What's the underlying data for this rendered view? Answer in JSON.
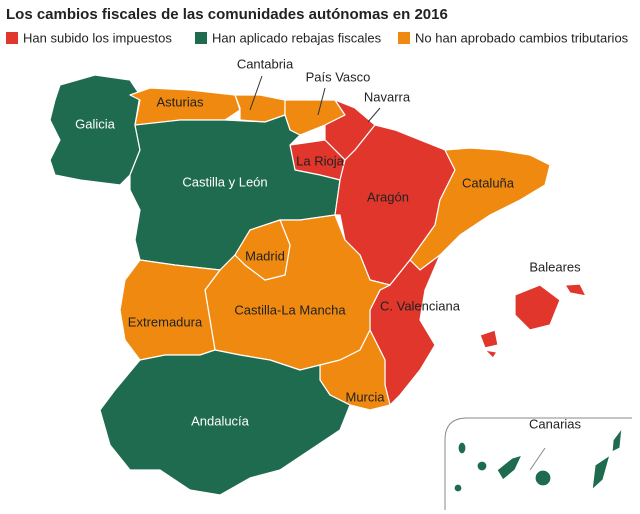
{
  "title": "Los cambios fiscales de las comunidades autónomas en 2016",
  "legend": [
    {
      "label": "Han subido los impuestos",
      "color": "#e0362c",
      "regions": [
        "Navarra",
        "La Rioja",
        "Aragón",
        "Baleares",
        "C. Valenciana"
      ]
    },
    {
      "label": "Han aplicado rebajas fiscales",
      "color": "#1f6b4f",
      "regions": [
        "Galicia",
        "Castilla y León",
        "Andalucía",
        "Canarias"
      ]
    },
    {
      "label": "No han aprobado cambios tributarios",
      "color": "#f0890f",
      "regions": [
        "Asturias",
        "Cantabria",
        "País Vasco",
        "Cataluña",
        "Madrid",
        "Castilla-La Mancha",
        "Extremadura",
        "Murcia"
      ]
    }
  ]
}
